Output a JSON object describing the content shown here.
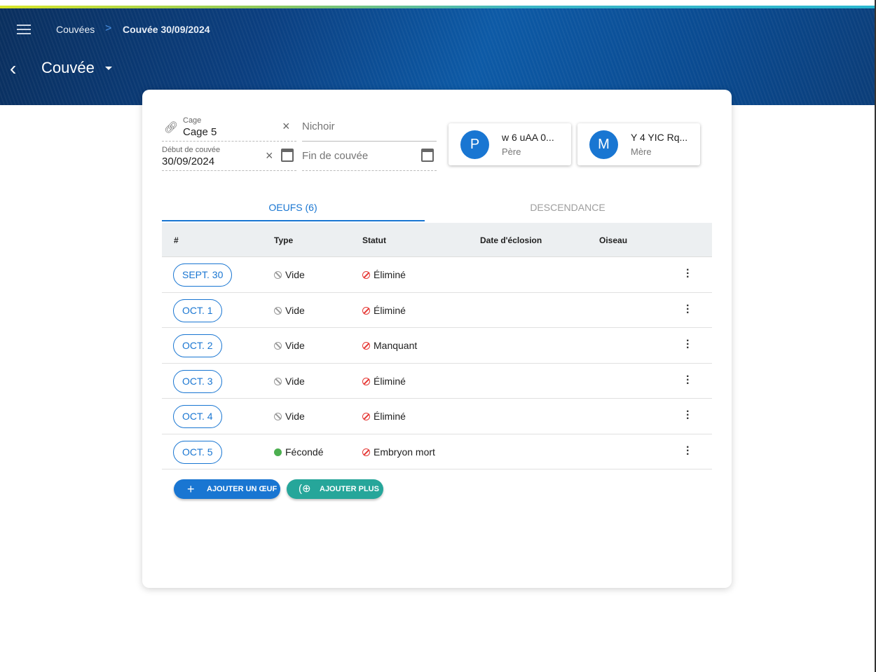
{
  "header": {
    "breadcrumbs": [
      "Couvées",
      "Couvée 30/09/2024"
    ],
    "separator": ">",
    "title": "Couvée"
  },
  "form": {
    "cage": {
      "label": "Cage",
      "value": "Cage 5"
    },
    "nichoir": {
      "placeholder": "Nichoir"
    },
    "debut": {
      "label": "Début de couvée",
      "value": "30/09/2024"
    },
    "fin": {
      "placeholder": "Fin de couvée"
    }
  },
  "parents": [
    {
      "initial": "P",
      "name": "w 6 uAA 0...",
      "role": "Père"
    },
    {
      "initial": "M",
      "name": "Y 4 YIC Rq...",
      "role": "Mère"
    }
  ],
  "tabs": [
    {
      "label": "OEUFS (6)",
      "active": true
    },
    {
      "label": "DESCENDANCE",
      "active": false
    }
  ],
  "table": {
    "columns": [
      "#",
      "Type",
      "Statut",
      "Date d'éclosion",
      "Oiseau"
    ],
    "rows": [
      {
        "date": "SEPT. 30",
        "type": "Vide",
        "status": "Éliminé"
      },
      {
        "date": "OCT. 1",
        "type": "Vide",
        "status": "Éliminé"
      },
      {
        "date": "OCT. 2",
        "type": "Vide",
        "status": "Manquant"
      },
      {
        "date": "OCT. 3",
        "type": "Vide",
        "status": "Éliminé"
      },
      {
        "date": "OCT. 4",
        "type": "Vide",
        "status": "Éliminé"
      },
      {
        "date": "OCT. 5",
        "type": "Fécondé",
        "status": "Embryon mort"
      }
    ]
  },
  "buttons": {
    "add_egg": "AJOUTER UN ŒUF",
    "add_more": "AJOUTER PLUS"
  },
  "colors": {
    "primary": "#1976d2",
    "teal": "#26a69a",
    "error": "#e53935",
    "success": "#4caf50"
  }
}
